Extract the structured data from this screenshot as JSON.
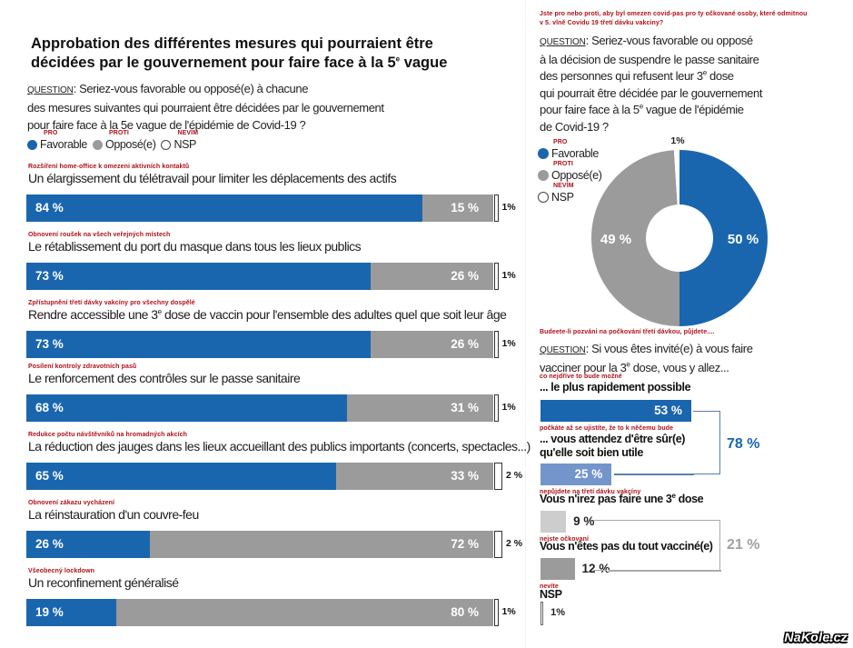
{
  "chart_data": [
    {
      "type": "bar",
      "orientation": "horizontal-stacked",
      "title": "Approbation des différentes mesures qui pourraient être décidées par le gouvernement pour faire face à la 5e vague",
      "question_label": "QUESTION",
      "question_lines": [
        ": Seriez-vous favorable ou opposé(e) à chacune",
        "des mesures suivantes qui pourraient être décidées par le gouvernement",
        "pour faire face à la 5e vague de l'épidémie de Covid-19 ?"
      ],
      "legend": [
        {
          "label": "Favorable",
          "cz": "PRO",
          "color": "#1a66ae"
        },
        {
          "label": "Opposé(e)",
          "cz": "PROTI",
          "color": "#9b9b9b"
        },
        {
          "label": "NSP",
          "cz": "NEVÍM",
          "color": "#ffffff"
        }
      ],
      "categories": [
        "Un élargissement du télétravail pour limiter les déplacements des actifs",
        "Le rétablissement du port du masque dans tous les lieux publics",
        "Rendre accessible une 3e dose de vaccin pour l'ensemble des adultes quel que soit leur âge",
        "Le renforcement des contrôles sur le passe sanitaire",
        "La réduction des jauges dans les lieux accueillant des publics importants (concerts, spectacles...)",
        "La réinstauration d'un couvre-feu",
        "Un reconfinement généralisé"
      ],
      "categories_cz": [
        "Rozšíření home-office k omezeni aktivních kontaktů",
        "Obnovení roušek na všech veřejných místech",
        "Zpřístupnění třetí dávky vakcíny pro všechny dospělé",
        "Posílení kontroly zdravotních pasů",
        "Redukce počtu návštěvníků na hromadných akcích",
        "Obnovení zákazu vycházení",
        "Všeobecný lockdown"
      ],
      "series": [
        {
          "name": "Favorable",
          "values": [
            84,
            73,
            73,
            68,
            65,
            26,
            19
          ]
        },
        {
          "name": "Opposé(e)",
          "values": [
            15,
            26,
            26,
            31,
            33,
            72,
            80
          ]
        },
        {
          "name": "NSP",
          "values": [
            1,
            1,
            1,
            1,
            2,
            2,
            1
          ]
        }
      ],
      "labels": {
        "fav": [
          "84 %",
          "73 %",
          "73 %",
          "68 %",
          "65 %",
          "26 %",
          "19 %"
        ],
        "opp": [
          "15 %",
          "26 %",
          "26 %",
          "31 %",
          "33 %",
          "72 %",
          "80 %"
        ],
        "nsp": [
          "1%",
          "1%",
          "1%",
          "1%",
          "2 %",
          "2 %",
          "1%"
        ]
      },
      "xlim": [
        0,
        100
      ]
    },
    {
      "type": "pie",
      "style": "donut",
      "cz_question": "Jste pro nebo proti, aby byl omezen covid-pas pro ty očkované osoby, které odmitnou v 5. vlně Covidu 19 třetí dávku vakciny?",
      "question_label": "QUESTION",
      "question_lines": [
        ": Seriez-vous favorable ou opposé",
        "à la décision de suspendre le passe sanitaire",
        "des personnes qui refusent leur 3e dose",
        "qui pourrait être décidée par le gouvernement",
        "pour faire face à la 5e vague de l'épidémie",
        "de Covid-19 ?"
      ],
      "legend": [
        {
          "label": "Favorable",
          "cz": "PRO",
          "color": "#1a66ae"
        },
        {
          "label": "Opposé(e)",
          "cz": "PROTI",
          "color": "#9b9b9b"
        },
        {
          "label": "NSP",
          "cz": "NEVÍM",
          "color": "#ffffff"
        }
      ],
      "slices": [
        {
          "name": "Favorable",
          "value": 50,
          "label": "50 %"
        },
        {
          "name": "Opposé(e)",
          "value": 49,
          "label": "49 %"
        },
        {
          "name": "NSP",
          "value": 1,
          "label": "1%"
        }
      ]
    },
    {
      "type": "bar",
      "orientation": "horizontal",
      "cz_question": "Budeete-li pozváni na počkování třetí dávkou, půjdete....",
      "question_label": "QUESTION",
      "question_lines": [
        ": Si vous êtes invité(e) à vous faire",
        "vacciner pour la 3e dose, vous y allez..."
      ],
      "categories": [
        "... le plus rapidement possible",
        "... vous attendez d'être sûr(e) qu'elle soit bien utile",
        "Vous n'irez pas faire une 3e dose",
        "Vous n'êtes pas du tout vacciné(e)",
        "NSP"
      ],
      "categories_cz": [
        "co nejdříve to bude možné",
        "počkáte až se ujistíte, že to k něčemu bude",
        "nepůjdete na třetí dávku vakcíny",
        "nejste očkovaní",
        "nevíte"
      ],
      "values": [
        53,
        25,
        9,
        12,
        1
      ],
      "value_labels": [
        "53 %",
        "25 %",
        "9 %",
        "12 %",
        "1%"
      ],
      "colors": [
        "#1a66ae",
        "#7495cc",
        "#cdcdcd",
        "#9b9b9b",
        "#ffffff"
      ],
      "groups": [
        {
          "label": "78 %",
          "value": 78,
          "members": [
            0,
            1
          ],
          "color": "#1a66ae"
        },
        {
          "label": "21 %",
          "value": 21,
          "members": [
            2,
            3
          ],
          "color": "#a0a0a0"
        }
      ],
      "xlim": [
        0,
        100
      ]
    }
  ],
  "watermark": "NaKole.cz"
}
